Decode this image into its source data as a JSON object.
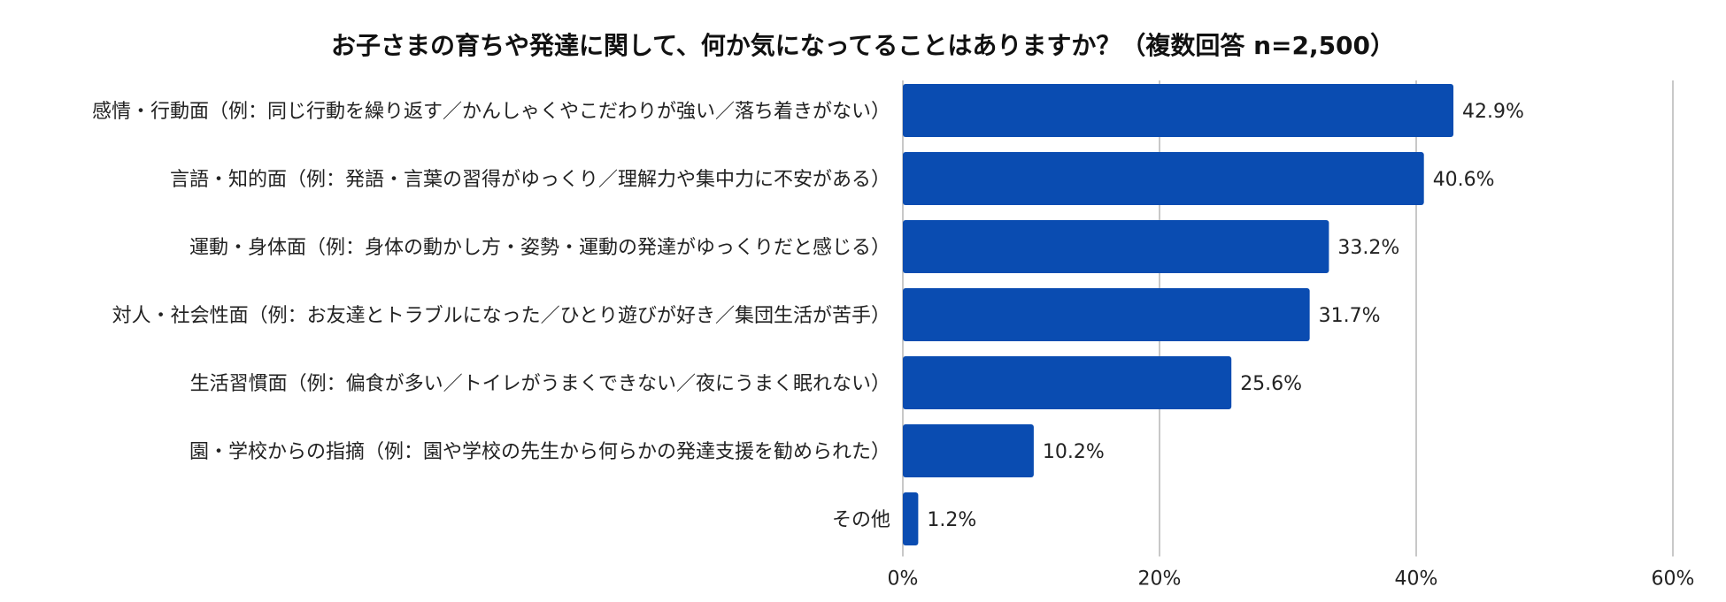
{
  "chart_data": {
    "type": "bar",
    "orientation": "horizontal",
    "title": "お子さまの育ちや発達に関して、何か気になってることはありますか？（複数回答 n=2,500）",
    "categories": [
      "感情・行動面（例：同じ行動を繰り返す／かんしゃくやこだわりが強い／落ち着きがない）",
      "言語・知的面（例：発語・言葉の習得がゆっくり／理解力や集中力に不安がある）",
      "運動・身体面（例：身体の動かし方・姿勢・運動の発達がゆっくりだと感じる）",
      "対人・社会性面（例：お友達とトラブルになった／ひとり遊びが好き／集団生活が苦手）",
      "生活習慣面（例：偏食が多い／トイレがうまくできない／夜にうまく眠れない）",
      "園・学校からの指摘（例：園や学校の先生から何らかの発達支援を勧められた）",
      "その他"
    ],
    "values": [
      42.9,
      40.6,
      33.2,
      31.7,
      25.6,
      10.2,
      1.2
    ],
    "value_labels": [
      "42.9%",
      "40.6%",
      "33.2%",
      "31.7%",
      "25.6%",
      "10.2%",
      "1.2%"
    ],
    "xlim": [
      0,
      60
    ],
    "xticks": [
      0,
      20,
      40,
      60
    ],
    "xtick_labels": [
      "0%",
      "20%",
      "40%",
      "60%"
    ],
    "xlabel": "",
    "ylabel": "",
    "grid": "vertical",
    "bar_color": "#0a4cb1",
    "grid_color": "#c8c8c8"
  }
}
